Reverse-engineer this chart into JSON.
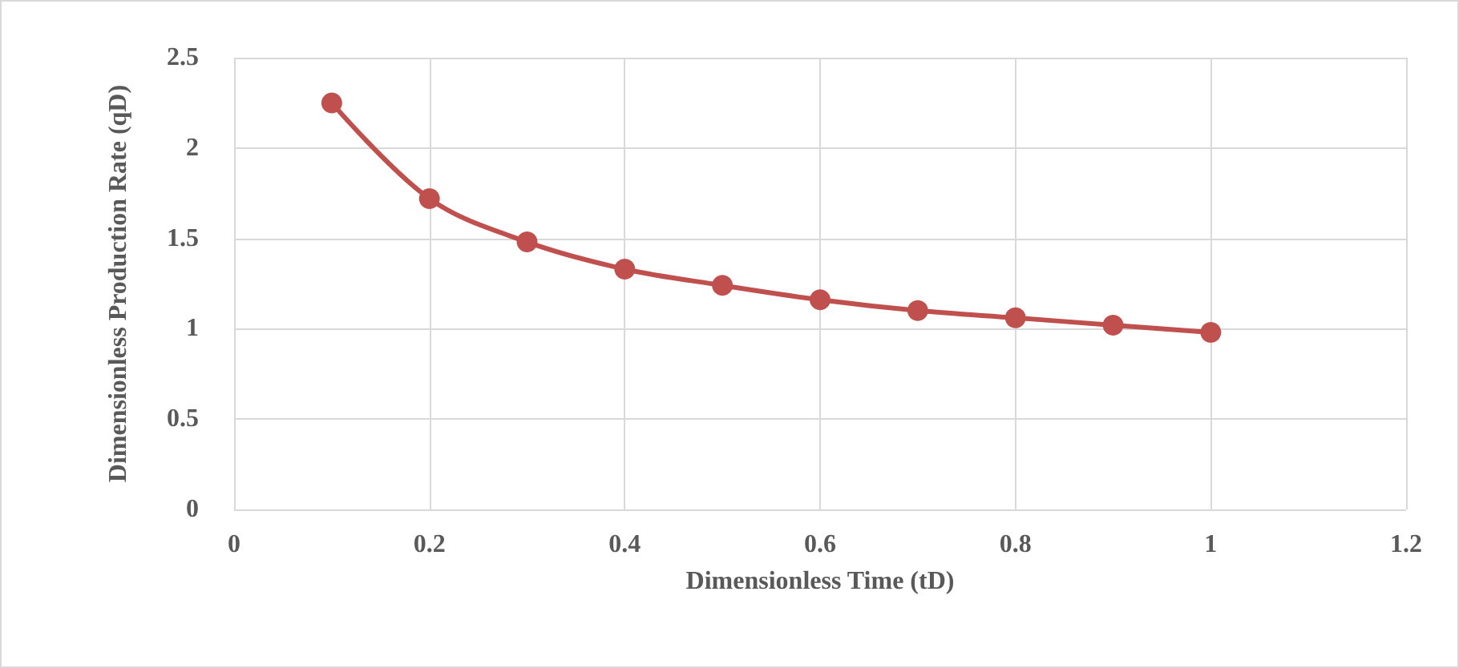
{
  "chart_data": {
    "type": "line",
    "xlabel": "Dimensionless Time (tD)",
    "ylabel": "Dimensionless Production Rate (qD)",
    "x": [
      0.1,
      0.2,
      0.3,
      0.4,
      0.5,
      0.6,
      0.7,
      0.8,
      0.9,
      1
    ],
    "series": [
      {
        "color": "#c0504d",
        "values": [
          2.25,
          1.72,
          1.48,
          1.33,
          1.24,
          1.16,
          1.1,
          1.06,
          1.02,
          0.98
        ]
      }
    ],
    "xlim": [
      0,
      1.2
    ],
    "xticks": [
      0,
      0.2,
      0.4,
      0.6,
      0.8,
      1,
      1.2
    ],
    "ylim": [
      0,
      2.5
    ],
    "yticks": [
      0,
      0.5,
      1,
      1.5,
      2,
      2.5
    ],
    "grid": true,
    "marker": "circle",
    "line_style": "solid"
  }
}
